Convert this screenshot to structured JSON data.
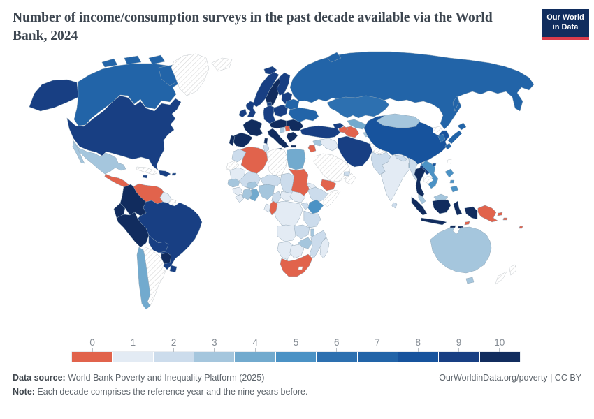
{
  "header": {
    "title": "Number of income/consumption surveys in the past decade available via the World Bank, 2024"
  },
  "logo": {
    "line1": "Our World",
    "line2": "in Data"
  },
  "legend": {
    "labels": [
      "0",
      "1",
      "2",
      "3",
      "4",
      "5",
      "6",
      "7",
      "8",
      "9",
      "10"
    ]
  },
  "footer": {
    "datasource_label": "Data source:",
    "datasource_text": " World Bank Poverty and Inequality Platform (2025)",
    "note_label": "Note:",
    "note_text": " Each decade comprises the reference year and the nine years before.",
    "link_text": "OurWorldinData.org/poverty | CC BY"
  },
  "chart_data": {
    "type": "heatmap",
    "subtype": "choropleth-world-map",
    "title": "Number of income/consumption surveys in the past decade available via the World Bank, 2024",
    "legend_values": [
      0,
      1,
      2,
      3,
      4,
      5,
      6,
      7,
      8,
      9,
      10
    ],
    "colors": [
      "#e1634c",
      "#e3ebf4",
      "#ccdcec",
      "#a5c6dd",
      "#72aace",
      "#4b92c5",
      "#2d70b0",
      "#2264a8",
      "#17539d",
      "#183f83",
      "#112c5e"
    ],
    "no_data_style": "white-diagonal-hatch",
    "regions": {
      "canada": 7,
      "alaska": 9,
      "usa": 9,
      "greenland": "no-data",
      "mexico": 3,
      "central-america": 0,
      "costa-rica-panama": 9,
      "cuba": "no-data",
      "jamaica": 9,
      "hispaniola": 9,
      "puerto-rico": 9,
      "venezuela": 0,
      "colombia": 10,
      "guyana": 1,
      "suriname": "no-data",
      "ecuador": 10,
      "peru": 10,
      "brazil": 9,
      "bolivia": 9,
      "paraguay": 10,
      "uruguay": 9,
      "chile": 4,
      "argentina": "no-data",
      "iceland": 9,
      "norway": 9,
      "sweden": 10,
      "finland": 9,
      "denmark": 9,
      "uk": 9,
      "ireland": 9,
      "france": 10,
      "spain": 10,
      "portugal": 10,
      "germany": 9,
      "central-europe": 10,
      "italy": 10,
      "poland": 9,
      "baltics": 9,
      "belarus": 7,
      "ukraine": 7,
      "romania-bulgaria": 10,
      "serbia": 0,
      "bosnia": 3,
      "greece": 10,
      "russia": 7,
      "svalbard": "no-data",
      "turkey": 9,
      "georgia-armenia": 9,
      "azerbaijan": 0,
      "syria": 3,
      "jordan": 0,
      "iraq": 1,
      "saudi-arabia": "no-data",
      "yemen": 0,
      "oman": "no-data",
      "uae": 2,
      "iran": 9,
      "afghanistan": "no-data",
      "pakistan": 2,
      "india": 1,
      "nepal": 2,
      "bangladesh": 3,
      "sri-lanka": 2,
      "kazakhstan": 6,
      "uzbekistan": 4,
      "turkmenistan": 0,
      "kyrgyzstan": 9,
      "tajikistan": 3,
      "china": 8,
      "mongolia": 3,
      "north-korea": "no-data",
      "south-korea": 6,
      "japan": 7,
      "myanmar": 2,
      "thailand": 10,
      "laos": 9,
      "cambodia": "no-data",
      "vietnam": 5,
      "malaysia": 3,
      "indonesia": 10,
      "timor-leste": 0,
      "philippines": 5,
      "papua-new-guinea": 0,
      "solomon-islands": 0,
      "fiji": 0,
      "australia": 3,
      "new-zealand": "no-data",
      "morocco": 2,
      "western-sahara": "no-data",
      "algeria": 0,
      "tunisia": 2,
      "libya": "no-data",
      "egypt": 4,
      "mauritania": 1,
      "mali": 2,
      "niger": 2,
      "chad": 2,
      "sudan": 0,
      "eritrea": 1,
      "ethiopia": 2,
      "somalia": "no-data",
      "senegal": 3,
      "guinea": 1,
      "sierra-leone-liberia": 1,
      "cote-divoire": 3,
      "ghana": 4,
      "burkina-faso": 3,
      "nigeria": 3,
      "cameroon": 2,
      "central-african-republic": 1,
      "south-sudan": 1,
      "drc": 1,
      "congo": 0,
      "gabon": 1,
      "uganda": 2,
      "kenya": 5,
      "tanzania": 2,
      "angola": 1,
      "zambia": 2,
      "malawi": 3,
      "mozambique": 2,
      "zimbabwe": 3,
      "namibia": 1,
      "botswana": 1,
      "south-africa": 0,
      "madagascar": 1
    }
  }
}
